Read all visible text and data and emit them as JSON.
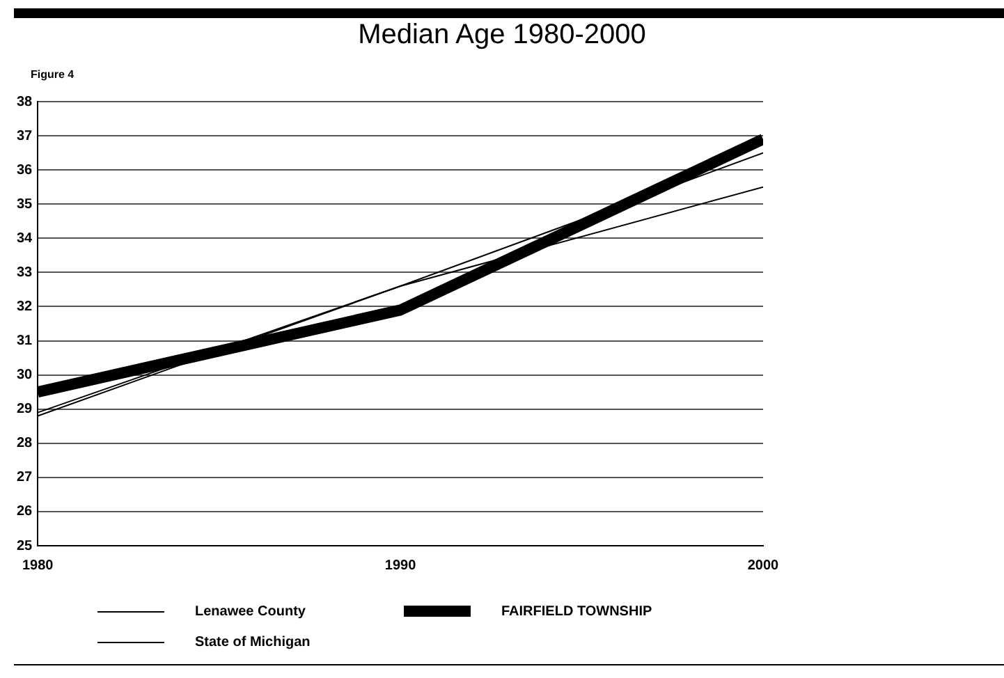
{
  "chart_data": {
    "type": "line",
    "title": "Median Age 1980-2000",
    "annotations": [
      "Figure 4"
    ],
    "x": [
      1980,
      1990,
      2000
    ],
    "series": [
      {
        "name": "Lenawee County",
        "color": "#000000",
        "values": [
          28.9,
          32.6,
          36.5
        ]
      },
      {
        "name": "State of Michigan",
        "color": "#000000",
        "values": [
          28.8,
          32.6,
          35.5
        ]
      },
      {
        "name": "FAIRFIELD TOWNSHIP",
        "color": "#000000",
        "values": [
          29.5,
          31.9,
          36.9
        ]
      }
    ],
    "xlim": [
      1980,
      2000
    ],
    "xticks": [
      1980,
      1990,
      2000
    ],
    "ylim": [
      25,
      38
    ],
    "yticks": [
      25,
      26,
      27,
      28,
      29,
      30,
      31,
      32,
      33,
      34,
      35,
      36,
      37,
      38
    ],
    "grid": "y",
    "legend": "bottom",
    "marker": "none",
    "line_style": "solid"
  }
}
